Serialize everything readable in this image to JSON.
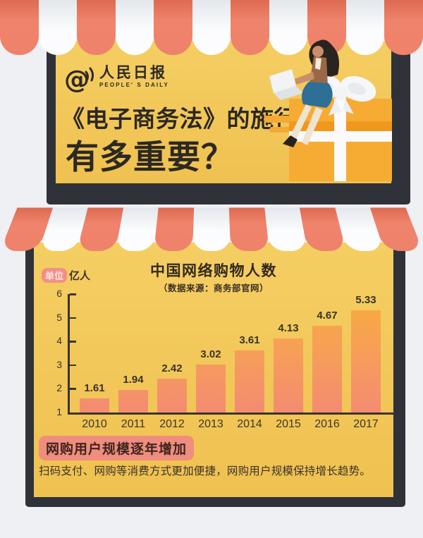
{
  "header": {
    "logo": {
      "icon": "at-megaphone-icon",
      "brand": "人民日报",
      "brand_en": "PEOPLE' S DAILY"
    },
    "title_line1": "《电子商务法》的施行",
    "title_line2": "有多重要？"
  },
  "chart_section": {
    "unit_badge": "单位",
    "unit_text": "亿人"
  },
  "chart_data": {
    "type": "bar",
    "title": "中国网络购物人数",
    "subtitle": "（数据来源：商务部官网）",
    "unit": "亿人",
    "categories": [
      "2010",
      "2011",
      "2012",
      "2013",
      "2014",
      "2015",
      "2016",
      "2017"
    ],
    "values": [
      1.61,
      1.94,
      2.42,
      3.02,
      3.61,
      4.13,
      4.67,
      5.33
    ],
    "xlabel": "",
    "ylabel": "亿人",
    "ylim": [
      1,
      6
    ],
    "yticks": [
      1,
      2,
      3,
      4,
      5,
      6
    ],
    "grid": false,
    "legend": "none",
    "bar_gradient_top": "#F8AB3C",
    "bar_gradient_bottom": "#F38B72"
  },
  "footer": {
    "highlight": "网购用户规模逐年增加",
    "body": "扫码支付、网购等消费方式更加便捷，网购用户规模保持增长趋势。"
  },
  "colors": {
    "background": "#EEF0F4",
    "awning_red": "#F0836B",
    "awning_white": "#FDFDFE",
    "board_yellow": "#F3C854",
    "frame_dark": "#2F3238",
    "ink": "#2E2A25",
    "badge_pink": "#EF8D7E",
    "axis": "#3A342C"
  }
}
